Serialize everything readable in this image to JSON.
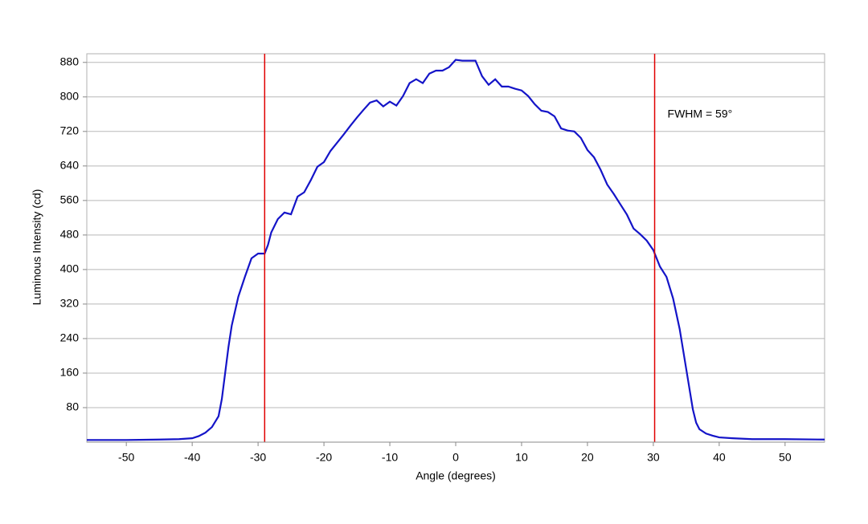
{
  "chart_data": {
    "type": "line",
    "x_label": "Angle (degrees)",
    "y_label": "Luminous Intensity (cd)",
    "annotation": "FWHM = 59°",
    "xlim": [
      -56,
      56
    ],
    "ylim": [
      0,
      900
    ],
    "xticks": [
      -50,
      -40,
      -30,
      -20,
      -10,
      0,
      10,
      20,
      30,
      40,
      50
    ],
    "yticks": [
      80,
      160,
      240,
      320,
      400,
      480,
      560,
      640,
      720,
      800,
      880
    ],
    "grid": true,
    "vlines": [
      -29,
      30.2
    ],
    "vline_color": "#e00000",
    "series": [
      {
        "color": "#1414c8",
        "x": [
          -56,
          -50,
          -45,
          -42,
          -40,
          -39,
          -38,
          -37,
          -36,
          -35.5,
          -35,
          -34.5,
          -34,
          -33,
          -32,
          -31,
          -30,
          -29,
          -28.5,
          -28,
          -27,
          -26,
          -25,
          -24,
          -23,
          -22,
          -21,
          -20,
          -19,
          -18,
          -17,
          -16,
          -15,
          -14,
          -13,
          -12,
          -11,
          -10,
          -9,
          -8,
          -7,
          -6,
          -5,
          -4,
          -3,
          -2,
          -1,
          0,
          1,
          2,
          3,
          4,
          5,
          6,
          7,
          8,
          9,
          10,
          11,
          12,
          13,
          14,
          15,
          16,
          17,
          18,
          19,
          20,
          21,
          22,
          23,
          24,
          25,
          26,
          27,
          28,
          29,
          30,
          31,
          32,
          33,
          34,
          35,
          36,
          36.5,
          37,
          38,
          39,
          40,
          42,
          45,
          50,
          56
        ],
        "values": [
          5,
          5,
          6,
          7,
          9,
          14,
          22,
          35,
          60,
          100,
          160,
          220,
          270,
          337,
          383,
          426,
          437,
          437,
          457,
          486,
          517,
          532,
          528,
          569,
          579,
          607,
          638,
          649,
          675,
          694,
          713,
          733,
          752,
          770,
          787,
          792,
          778,
          789,
          780,
          802,
          832,
          841,
          832,
          854,
          861,
          861,
          869,
          886,
          884,
          884,
          884,
          848,
          828,
          841,
          824,
          824,
          819,
          815,
          802,
          783,
          768,
          765,
          755,
          727,
          722,
          720,
          705,
          677,
          660,
          631,
          597,
          575,
          551,
          527,
          495,
          482,
          467,
          445,
          407,
          383,
          333,
          262,
          169,
          76,
          45,
          30,
          20,
          15,
          11,
          9,
          7,
          7,
          6
        ]
      }
    ]
  }
}
